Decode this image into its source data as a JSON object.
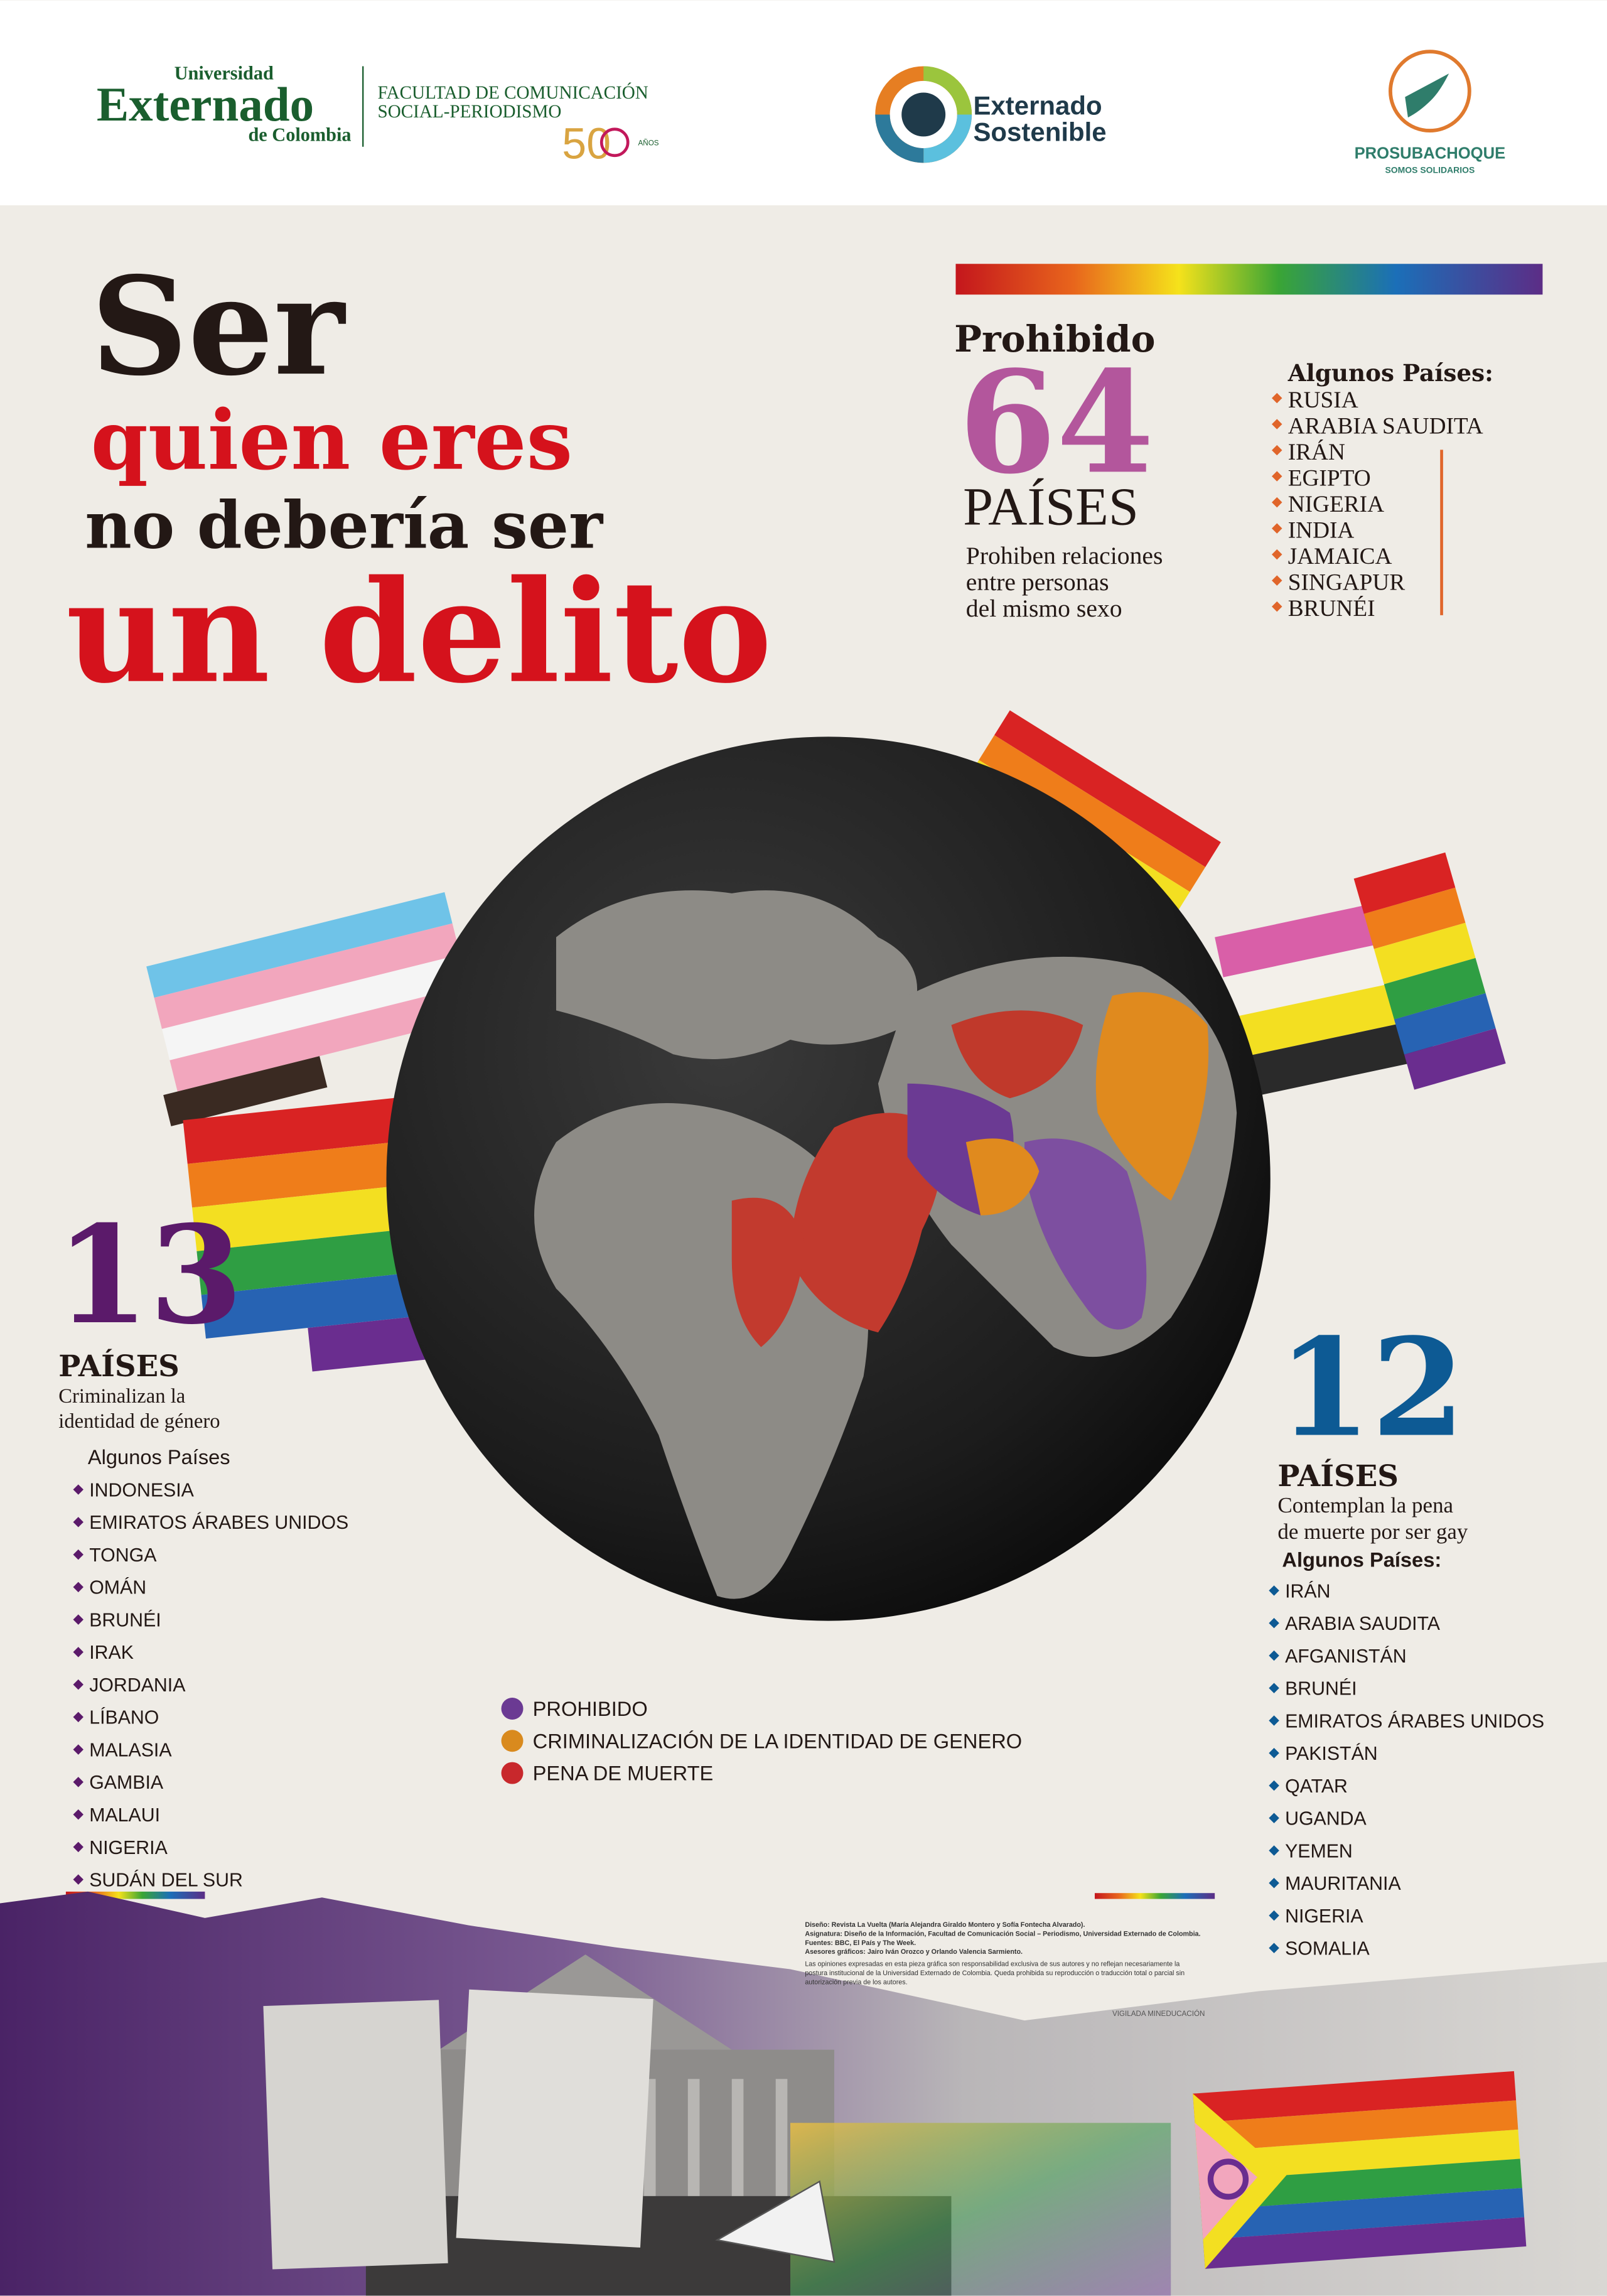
{
  "header": {
    "externado": {
      "line1": "Universidad",
      "line2": "Externado",
      "line3": "de Colombia"
    },
    "faculty": {
      "line1": "FACULTAD DE COMUNICACIÓN",
      "line2": "SOCIAL-PERIODISMO",
      "anniversary": "50",
      "anniversary_label": "AÑOS"
    },
    "sostenible": {
      "line1": "Externado",
      "line2": "Sostenible"
    },
    "prosubachoque": {
      "name": "PROSUBACHOQUE",
      "tagline": "SOMOS SOLIDARIOS"
    }
  },
  "title": {
    "line1": "Ser",
    "line2": "quien eres",
    "line3": "no debería ser",
    "line4": "un delito"
  },
  "prohibited": {
    "heading": "Prohibido",
    "count": 64,
    "unit": "PAÍSES",
    "description": [
      "Prohiben relaciones",
      "entre personas",
      "del mismo sexo"
    ],
    "list_title": "Algunos Países:",
    "countries": [
      "RUSIA",
      "ARABIA SAUDITA",
      "IRÁN",
      "EGIPTO",
      "NIGERIA",
      "INDIA",
      "JAMAICA",
      "SINGAPUR",
      "BRUNÉI"
    ]
  },
  "gender_identity": {
    "count": 13,
    "unit": "PAÍSES",
    "description": [
      "Criminalizan la",
      "identidad de género"
    ],
    "list_title": "Algunos Países",
    "countries": [
      "INDONESIA",
      "EMIRATOS ÁRABES UNIDOS",
      "TONGA",
      "OMÁN",
      "BRUNÉI",
      "IRAK",
      "JORDANIA",
      "LÍBANO",
      "MALASIA",
      "GAMBIA",
      "MALAUI",
      "NIGERIA",
      "SUDÁN DEL SUR"
    ]
  },
  "death_penalty": {
    "count": 12,
    "unit": "PAÍSES",
    "description": [
      "Contemplan la pena",
      "de muerte por ser gay"
    ],
    "list_title": "Algunos Países:",
    "countries": [
      "IRÁN",
      "ARABIA SAUDITA",
      "AFGANISTÁN",
      "BRUNÉI",
      "EMIRATOS ÁRABES UNIDOS",
      "PAKISTÁN",
      "QATAR",
      "UGANDA",
      "YEMEN",
      "MAURITANIA",
      "NIGERIA",
      "SOMALIA"
    ]
  },
  "legend": [
    "PROHIBIDO",
    "CRIMINALIZACIÓN DE LA IDENTIDAD DE GENERO",
    "PENA DE MUERTE"
  ],
  "credits": {
    "lines": [
      "Diseño: Revista La Vuelta (María Alejandra Giraldo Montero y Sofía Fontecha Alvarado).",
      "Asignatura: Diseño de la Información, Facultad de Comunicación Social – Periodismo, Universidad Externado de Colombia.",
      "Fuentes: BBC, El País y The Week.",
      "Asesores gráficos: Jairo Iván Orozco y Orlando Valencia Sarmiento.",
      "Las opiniones expresadas en esta pieza gráfica son responsabilidad exclusiva de sus autores y no reflejan necesariamente la",
      "postura institucional de la Universidad Externado de Colombia. Queda prohibida su reproducción o traducción total o parcial sin",
      "autorización previa de los autores."
    ],
    "vigilada": "VIGILADA MINEDUCACIÓN"
  }
}
